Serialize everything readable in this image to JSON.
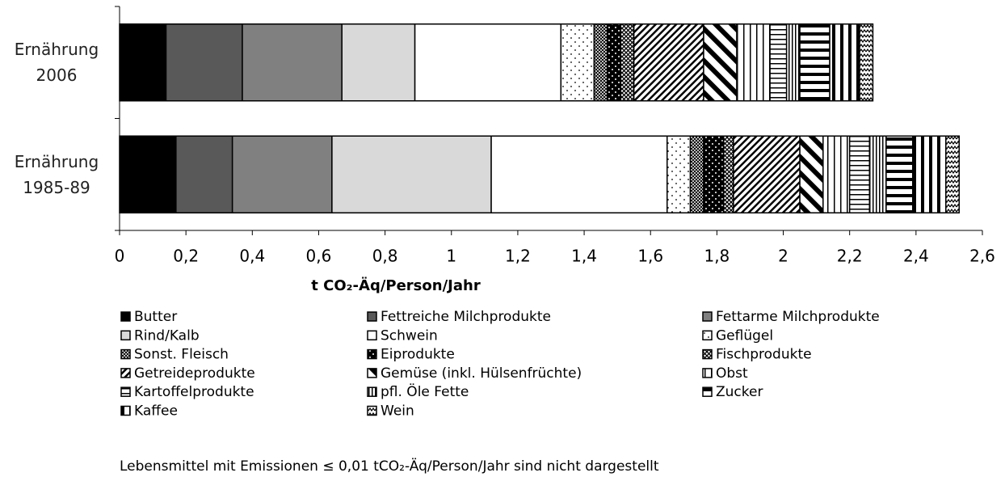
{
  "chart_data": {
    "type": "stacked-barh",
    "categories": [
      "Ernährung 2006",
      "Ernährung 1985-89"
    ],
    "xlabel": "t CO₂-Äq/Person/Jahr",
    "note": "Lebensmittel mit Emissionen ≤ 0,01 tCO₂-Äq/Person/Jahr sind nicht dargestellt",
    "xlim": [
      0,
      2.6
    ],
    "xticks": [
      0,
      {
        "value": 0.2,
        "label": "0,2"
      },
      {
        "value": 0.4,
        "label": "0,4"
      },
      {
        "value": 0.6,
        "label": "0,6"
      },
      {
        "value": 0.8,
        "label": "0,8"
      },
      1,
      {
        "value": 1.2,
        "label": "1,2"
      },
      {
        "value": 1.4,
        "label": "1,4"
      },
      {
        "value": 1.6,
        "label": "1,6"
      },
      {
        "value": 1.8,
        "label": "1,8"
      },
      2,
      {
        "value": 2.2,
        "label": "2,2"
      },
      {
        "value": 2.4,
        "label": "2,4"
      },
      {
        "value": 2.6,
        "label": "2,6"
      }
    ],
    "series": [
      {
        "name": "Butter",
        "color": "#000000",
        "values": [
          0.14,
          0.17
        ]
      },
      {
        "name": "Fettreiche Milchprodukte",
        "color": "#595959",
        "values": [
          0.23,
          0.17
        ]
      },
      {
        "name": "Fettarme Milchprodukte",
        "color": "#808080",
        "values": [
          0.3,
          0.3
        ]
      },
      {
        "name": "Rind/Kalb",
        "color": "#d9d9d9",
        "values": [
          0.22,
          0.48
        ]
      },
      {
        "name": "Schwein",
        "color": "#ffffff",
        "values": [
          0.44,
          0.53
        ]
      },
      {
        "name": "Geflügel",
        "color": "#000000",
        "pattern": "dots",
        "values": [
          0.1,
          0.07
        ]
      },
      {
        "name": "Sonst. Fleisch",
        "color": "#000000",
        "pattern": "cross",
        "values": [
          0.04,
          0.04
        ]
      },
      {
        "name": "Eiprodukte",
        "color": "#000000",
        "pattern": "bigdots",
        "values": [
          0.04,
          0.06
        ]
      },
      {
        "name": "Fischprodukte",
        "color": "#000000",
        "pattern": "diagcross",
        "values": [
          0.04,
          0.03
        ]
      },
      {
        "name": "Getreideprodukte",
        "color": "#000000",
        "pattern": "diag",
        "values": [
          0.21,
          0.2
        ]
      },
      {
        "name": "Gemüse (inkl. Hülsenfrüchte)",
        "color": "#000000",
        "pattern": "diagbold",
        "values": [
          0.1,
          0.07
        ]
      },
      {
        "name": "Obst",
        "color": "#000000",
        "pattern": "vert",
        "values": [
          0.1,
          0.08
        ]
      },
      {
        "name": "Kartoffelprodukte",
        "color": "#000000",
        "pattern": "horiz",
        "values": [
          0.05,
          0.06
        ]
      },
      {
        "name": "pfl. Öle Fette",
        "color": "#000000",
        "pattern": "vertfine",
        "values": [
          0.04,
          0.05
        ]
      },
      {
        "name": "Zucker",
        "color": "#000000",
        "pattern": "horizbold",
        "values": [
          0.09,
          0.08
        ]
      },
      {
        "name": "Kaffee",
        "color": "#000000",
        "pattern": "vertbold",
        "values": [
          0.09,
          0.1
        ]
      },
      {
        "name": "Wein",
        "color": "#000000",
        "pattern": "wave",
        "values": [
          0.04,
          0.04
        ]
      }
    ]
  }
}
